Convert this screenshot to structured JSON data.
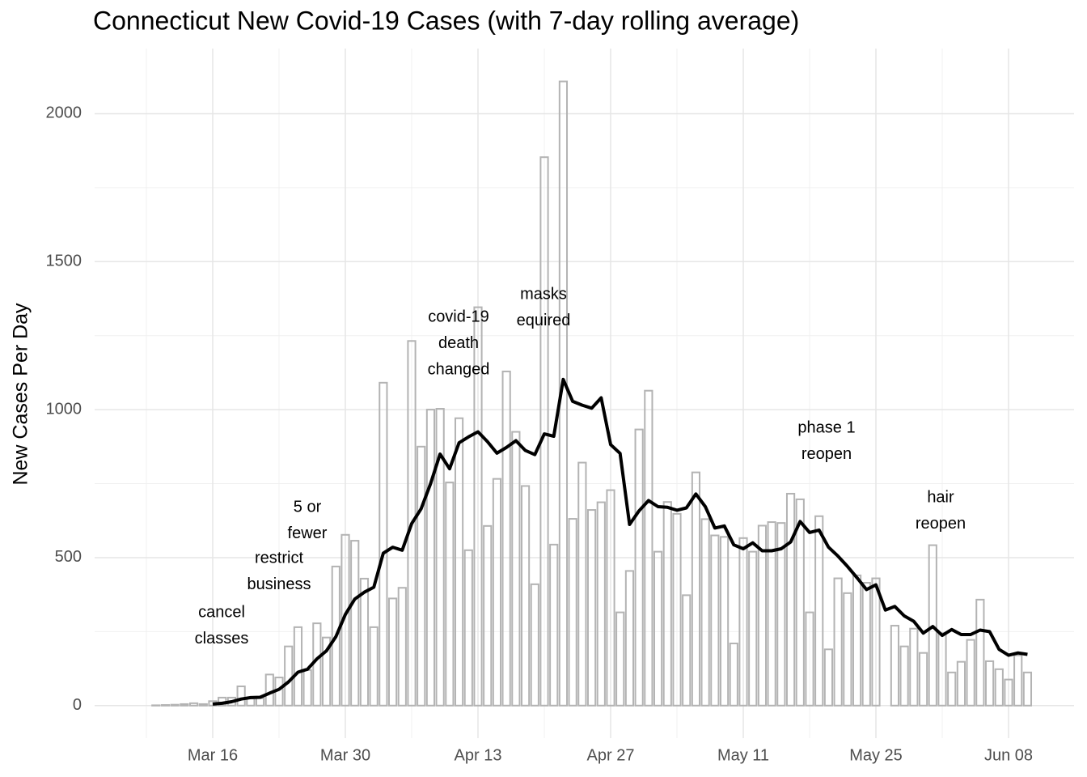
{
  "chart_data": {
    "type": "bar",
    "title": "Connecticut New Covid-19 Cases (with 7-day rolling average)",
    "y_label": "New Cases Per Day",
    "categories": [
      null,
      null,
      null,
      null,
      null,
      null,
      null,
      null,
      "Mar 16",
      null,
      null,
      null,
      null,
      null,
      null,
      null,
      null,
      null,
      null,
      null,
      null,
      null,
      "Mar 30",
      null,
      null,
      null,
      null,
      null,
      null,
      null,
      null,
      null,
      null,
      null,
      null,
      null,
      "Apr 13",
      null,
      null,
      null,
      null,
      null,
      null,
      null,
      null,
      null,
      null,
      null,
      null,
      null,
      "Apr 27",
      null,
      null,
      null,
      null,
      null,
      null,
      null,
      null,
      null,
      null,
      null,
      null,
      null,
      "May 11",
      null,
      null,
      null,
      null,
      null,
      null,
      null,
      null,
      null,
      null,
      null,
      null,
      null,
      "May 25",
      null,
      null,
      null,
      null,
      null,
      null,
      null,
      null,
      null,
      null,
      null,
      null,
      null,
      "Jun 08",
      null,
      null
    ],
    "series": [
      {
        "type": "bar",
        "color": "#b3b3b3",
        "values": [
          0,
          0,
          1,
          2,
          3,
          5,
          8,
          5,
          15,
          27,
          27,
          65,
          24,
          25,
          105,
          95,
          200,
          265,
          120,
          278,
          230,
          470,
          577,
          557,
          429,
          265,
          1091,
          362,
          398,
          1232,
          875,
          1000,
          1003,
          754,
          971,
          525,
          1346,
          607,
          766,
          1129,
          925,
          742,
          410,
          1853,
          544,
          2109,
          631,
          821,
          661,
          687,
          728,
          315,
          455,
          933,
          1064,
          520,
          688,
          648,
          373,
          788,
          630,
          575,
          570,
          210,
          566,
          520,
          608,
          620,
          617,
          716,
          697,
          315,
          640,
          190,
          430,
          380,
          440,
          415,
          430,
          0,
          270,
          200,
          260,
          178,
          542,
          245,
          112,
          148,
          222,
          358,
          150,
          123,
          88,
          170,
          112
        ]
      },
      {
        "type": "line",
        "color": "#000000",
        "values": [
          null,
          null,
          null,
          null,
          null,
          null,
          null,
          null,
          5,
          8,
          13,
          22,
          27,
          28,
          42,
          55,
          80,
          113,
          123,
          158,
          185,
          233,
          308,
          360,
          383,
          400,
          515,
          535,
          525,
          615,
          665,
          750,
          850,
          800,
          888,
          908,
          925,
          892,
          853,
          872,
          895,
          862,
          848,
          918,
          910,
          1102,
          1028,
          1015,
          1005,
          1040,
          882,
          852,
          612,
          658,
          693,
          672,
          670,
          660,
          668,
          715,
          672,
          600,
          607,
          543,
          530,
          550,
          523,
          523,
          530,
          553,
          622,
          585,
          593,
          535,
          505,
          470,
          432,
          392,
          408,
          323,
          335,
          303,
          285,
          245,
          267,
          237,
          257,
          240,
          240,
          255,
          250,
          190,
          170,
          178,
          173
        ]
      }
    ],
    "ylim": [
      -110,
      2220
    ],
    "yticks": [
      0,
      500,
      1000,
      1500,
      2000
    ],
    "grid": true,
    "annotations": [
      {
        "lines": [
          "cancel",
          "classes"
        ]
      },
      {
        "lines": [
          "restrict",
          "business"
        ]
      },
      {
        "lines": [
          "5 or",
          "fewer"
        ]
      },
      {
        "lines": [
          "covid-19",
          "death",
          "changed"
        ]
      },
      {
        "lines": [
          "masks",
          "equired"
        ]
      },
      {
        "lines": [
          "phase 1",
          "reopen"
        ]
      },
      {
        "lines": [
          "hair",
          "reopen"
        ]
      }
    ]
  }
}
